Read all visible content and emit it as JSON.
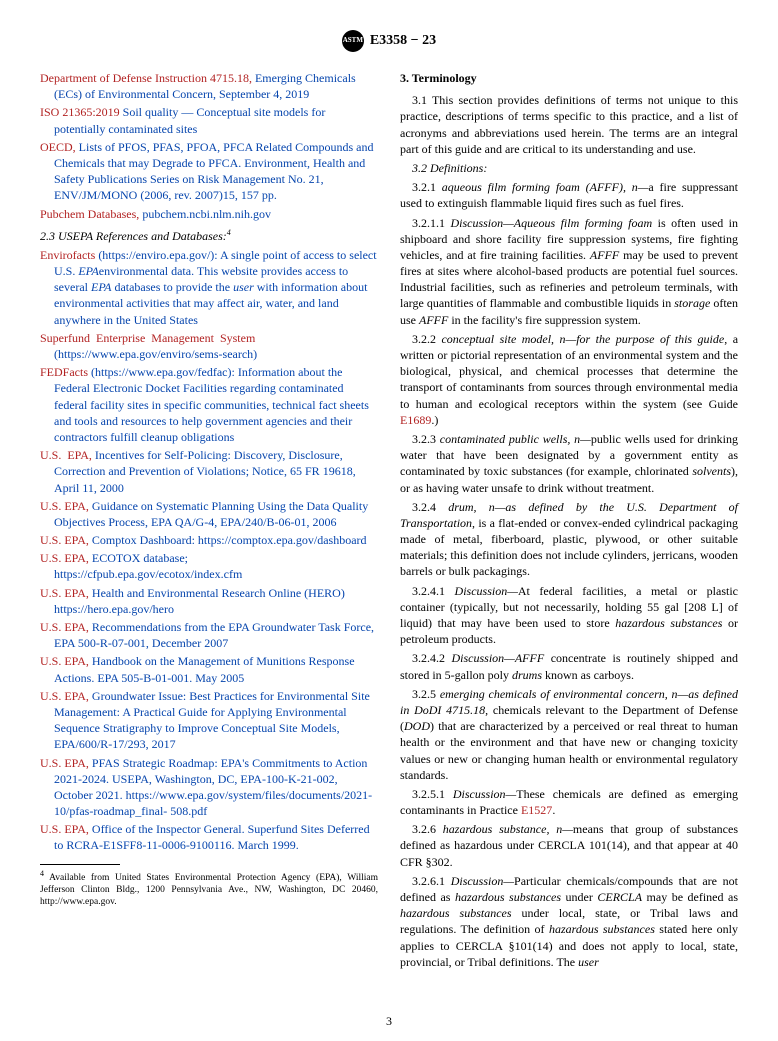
{
  "header": {
    "standard": "E3358 − 23"
  },
  "leftCol": {
    "refs": [
      {
        "red": "Department of Defense Instruction 4715.18,",
        "rest": " Emerging Chemicals (ECs) of Environmental Concern, September 4, 2019",
        "link": true
      },
      {
        "red": "ISO 21365:2019",
        "rest": " Soil quality — Conceptual site models for potentially contaminated sites",
        "link": true
      },
      {
        "red": "OECD,",
        "rest": " Lists of PFOS, PFAS, PFOA, PFCA Related Compounds and Chemicals that may Degrade to PFCA. Environment, Health and Safety Publications Series on Risk Management No. 21, ENV/JM/MONO (2006, rev. 2007)15, 157 pp.",
        "link": true
      },
      {
        "red": "Pubchem Databases,",
        "rest": " pubchem.ncbi.nlm.nih.gov",
        "link": true
      }
    ],
    "subsectionLabel": "2.3 ",
    "subsectionTitle": "USEPA References and Databases:",
    "footRef": "4",
    "refs2": [
      {
        "red": "Envirofacts",
        "rest": " (https://enviro.epa.gov/): A single point of access to select U.S. EPAenvironmental data. This website provides access to several EPA databases to provide the user with information about environmental activities that may affect air, water, and land anywhere in the United States",
        "italics": [
          "EPA",
          "EPA",
          "user"
        ]
      },
      {
        "red": "Superfund Enterprise Management System",
        "rest": " (https://www.epa.gov/enviro/sems-search)",
        "link": true
      },
      {
        "red": "FEDFacts",
        "rest": " (https://www.epa.gov/fedfac): Information about the Federal Electronic Docket Facilities regarding contaminated federal facility sites in specific communities, technical fact sheets and tools and resources to help government agencies and their contractors fulfill cleanup obligations",
        "link": true
      },
      {
        "red": "U.S. EPA,",
        "rest": " Incentives for Self-Policing: Discovery, Disclosure, Correction and Prevention of Violations; Notice, 65 FR 19618, April 11, 2000",
        "link": true
      },
      {
        "red": "U.S. EPA,",
        "rest": " Guidance on Systematic Planning Using the Data Quality Objectives Process, EPA QA/G-4, EPA/240/B-06-01, 2006",
        "link": true
      },
      {
        "red": "U.S. EPA,",
        "rest": " Comptox Dashboard: https://comptox.epa.gov/dashboard",
        "link": true
      },
      {
        "red": "U.S. EPA,",
        "rest": " ECOTOX database; https://cfpub.epa.gov/ecotox/index.cfm",
        "link": true
      },
      {
        "red": "U.S. EPA,",
        "rest": " Health and Environmental Research Online (HERO) https://hero.epa.gov/hero",
        "link": true
      },
      {
        "red": "U.S. EPA,",
        "rest": " Recommendations from the EPA Groundwater Task Force, EPA 500-R-07-001, December 2007",
        "link": true
      },
      {
        "red": "U.S. EPA,",
        "rest": " Handbook on the Management of Munitions Response Actions. EPA 505-B-01-001. May 2005",
        "link": true
      },
      {
        "red": "U.S. EPA,",
        "rest": " Groundwater Issue: Best Practices for Environmental Site Management: A Practical Guide for Applying Environmental Sequence Stratigraphy to Improve Conceptual Site Models, EPA/600/R-17/293, 2017",
        "link": true
      },
      {
        "red": "U.S. EPA,",
        "rest": " PFAS Strategic Roadmap: EPA's Commitments to Action 2021-2024. USEPA, Washington, DC, EPA-100-K-21-002, October 2021. https://www.epa.gov/system/files/documents/2021-10/pfas-roadmap_final- 508.pdf",
        "link": true
      },
      {
        "red": "U.S. EPA,",
        "rest": " Office of the Inspector General. Superfund Sites Deferred to RCRA-E1SFF8-11-0006-9100116. March 1999.",
        "link": true
      }
    ],
    "footnote": "4 Available from United States Environmental Protection Agency (EPA), William Jefferson Clinton Bldg., 1200 Pennsylvania Ave., NW, Washington, DC 20460, http://www.epa.gov."
  },
  "rightCol": {
    "sectionHead": "3. Terminology",
    "p31": "3.1 This section provides definitions of terms not unique to this practice, descriptions of terms specific to this practice, and a list of acronyms and abbreviations used herein. The terms are an integral part of this guide and are critical to its understanding and use.",
    "p32": "3.2 Definitions:",
    "p321a": "3.2.1 aqueous film forming foam (AFFF), n—",
    "p321b": "a fire suppressant used to extinguish flammable liquid fires such as fuel fires.",
    "p3211a": "3.2.1.1 Discussion—Aqueous film forming foam",
    "p3211b": " is often used in shipboard and shore facility fire suppression systems, fire fighting vehicles, and at fire training facilities. AFFF may be used to prevent fires at sites where alcohol-based products are potential fuel sources. Industrial facilities, such as refineries and petroleum terminals, with large quantities of flammable and combustible liquids in storage often use AFFF in the facility's fire suppression system.",
    "p322a": "3.2.2 conceptual site model, n—for the purpose of this guide",
    "p322b": ", a written or pictorial representation of an environmental system and the biological, physical, and chemical processes that determine the transport of contaminants from sources through environmental media to human and ecological receptors within the system (see Guide ",
    "p322c": "E1689",
    "p322d": ".)",
    "p323a": "3.2.3 contaminated public wells, n—",
    "p323b": "public wells used for drinking water that have been designated by a government entity as contaminated by toxic substances (for example, chlorinated solvents), or as having water unsafe to drink without treatment.",
    "p324a": "3.2.4 drum, n—as defined by the U.S. Department of Transportation",
    "p324b": ", is a flat-ended or convex-ended cylindrical packaging made of metal, fiberboard, plastic, plywood, or other suitable materials; this definition does not include cylinders, jerricans, wooden barrels or bulk packagings.",
    "p3241a": "3.2.4.1 Discussion—",
    "p3241b": "At federal facilities, a metal or plastic container (typically, but not necessarily, holding 55 gal [208 L] of liquid) that may have been used to store hazardous substances or petroleum products.",
    "p3242a": "3.2.4.2 Discussion—AFFF",
    "p3242b": " concentrate is routinely shipped and stored in 5-gallon poly drums known as carboys.",
    "p325a": "3.2.5 emerging chemicals of environmental concern, n—as defined in DoDI 4715.18",
    "p325b": ", chemicals relevant to the Department of Defense (DOD) that are characterized by a perceived or real threat to human health or the environment and that have new or changing toxicity values or new or changing human health or environmental regulatory standards.",
    "p3251a": "3.2.5.1 Discussion—",
    "p3251b": "These chemicals are defined as emerging contaminants in Practice ",
    "p3251c": "E1527",
    "p3251d": ".",
    "p326a": "3.2.6 hazardous substance, n—",
    "p326b": "means that group of substances defined as hazardous under CERCLA 101(14), and that appear at 40 CFR §302.",
    "p3261a": "3.2.6.1 Discussion—",
    "p3261b": "Particular chemicals/compounds that are not defined as hazardous substances under CERCLA may be defined as hazardous substances under local, state, or Tribal laws and regulations. The definition of hazardous substances stated here only applies to CERCLA §101(14) and does not apply to local, state, provincial, or Tribal definitions. The user"
  },
  "pageNumber": "3"
}
